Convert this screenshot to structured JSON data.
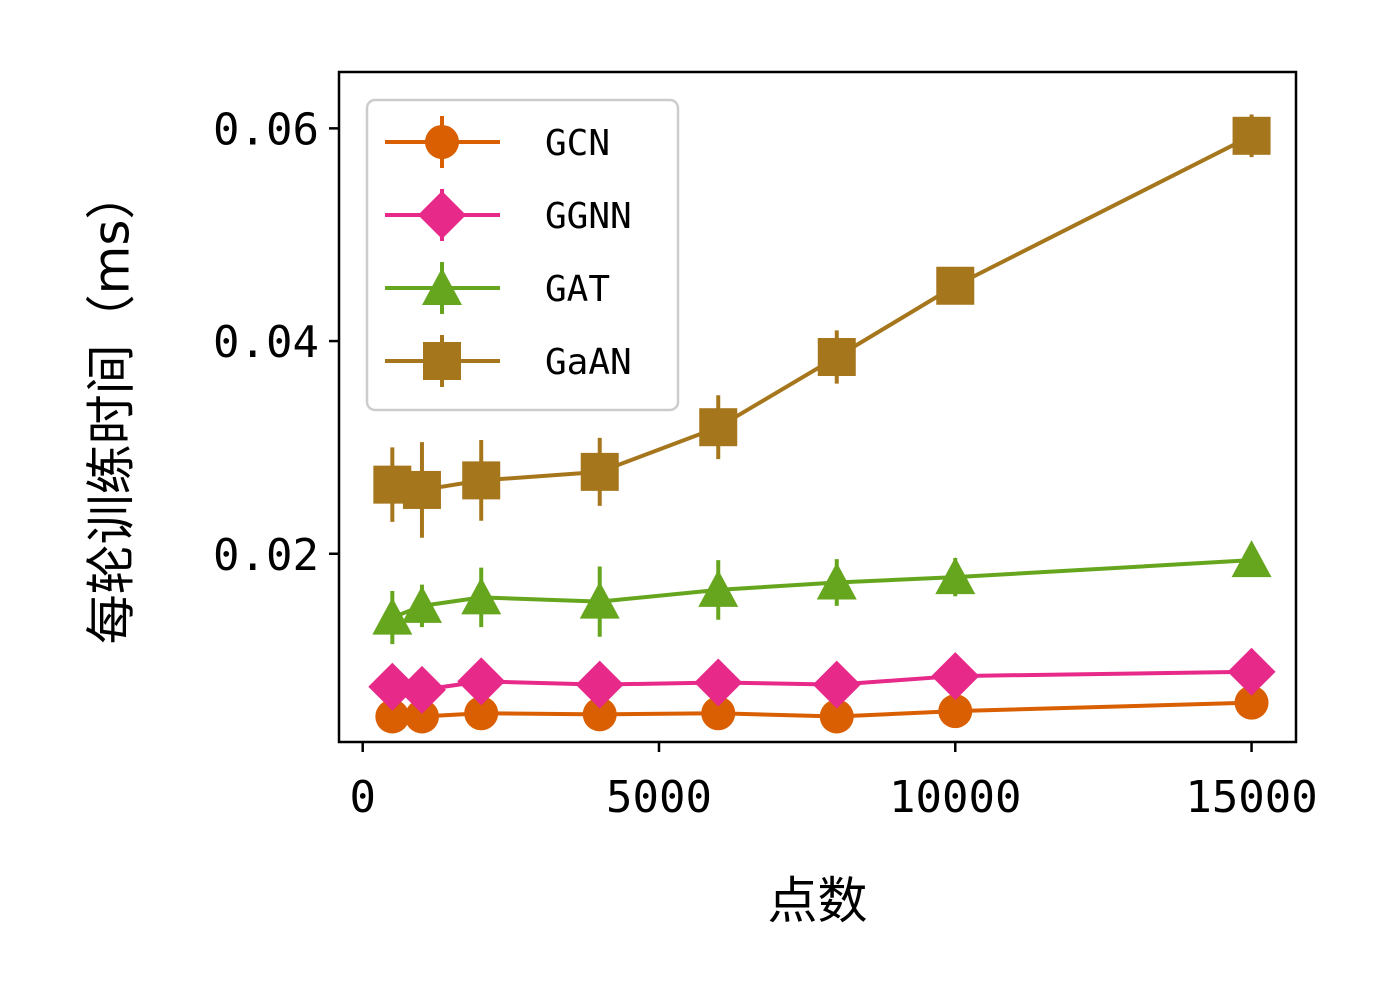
{
  "chart_data": {
    "type": "line",
    "xlabel": "点数",
    "ylabel": "每轮训练时间（ms）",
    "xlim": [
      -400,
      15750
    ],
    "ylim": [
      0.0023,
      0.0653
    ],
    "xticks": [
      0,
      5000,
      10000,
      15000
    ],
    "xtick_labels": [
      "0",
      "5000",
      "10000",
      "15000"
    ],
    "yticks": [
      0.02,
      0.04,
      0.06
    ],
    "ytick_labels": [
      "0.02",
      "0.04",
      "0.06"
    ],
    "grid": false,
    "legend_position": "top-left",
    "x": [
      500,
      1000,
      2000,
      4000,
      6000,
      8000,
      10000,
      15000
    ],
    "series": [
      {
        "name": "GCN",
        "color": "#d95f02",
        "marker": "circle",
        "values": [
          0.0047,
          0.0047,
          0.005,
          0.0049,
          0.005,
          0.0047,
          0.0052,
          0.006
        ],
        "errors": [
          0.0004,
          0.0004,
          0.0004,
          0.0004,
          0.0004,
          0.0004,
          0.0004,
          0.0004
        ]
      },
      {
        "name": "GGNN",
        "color": "#e7298a",
        "marker": "diamond",
        "values": [
          0.0075,
          0.0072,
          0.008,
          0.0077,
          0.0079,
          0.0077,
          0.0085,
          0.0089
        ],
        "errors": [
          0.0005,
          0.0005,
          0.0005,
          0.0005,
          0.0005,
          0.0005,
          0.0005,
          0.0005
        ]
      },
      {
        "name": "GAT",
        "color": "#66a61e",
        "marker": "triangle",
        "values": [
          0.014,
          0.0151,
          0.0159,
          0.0155,
          0.0166,
          0.0173,
          0.0178,
          0.0194
        ],
        "errors": [
          0.0025,
          0.002,
          0.0028,
          0.0033,
          0.0028,
          0.0022,
          0.0018,
          0.0015
        ]
      },
      {
        "name": "GaAN",
        "color": "#a6761d",
        "marker": "square",
        "values": [
          0.0265,
          0.026,
          0.0269,
          0.0277,
          0.0319,
          0.0385,
          0.0452,
          0.0593
        ],
        "errors": [
          0.0035,
          0.0045,
          0.0038,
          0.0032,
          0.003,
          0.0025,
          0.0015,
          0.002
        ]
      }
    ]
  }
}
